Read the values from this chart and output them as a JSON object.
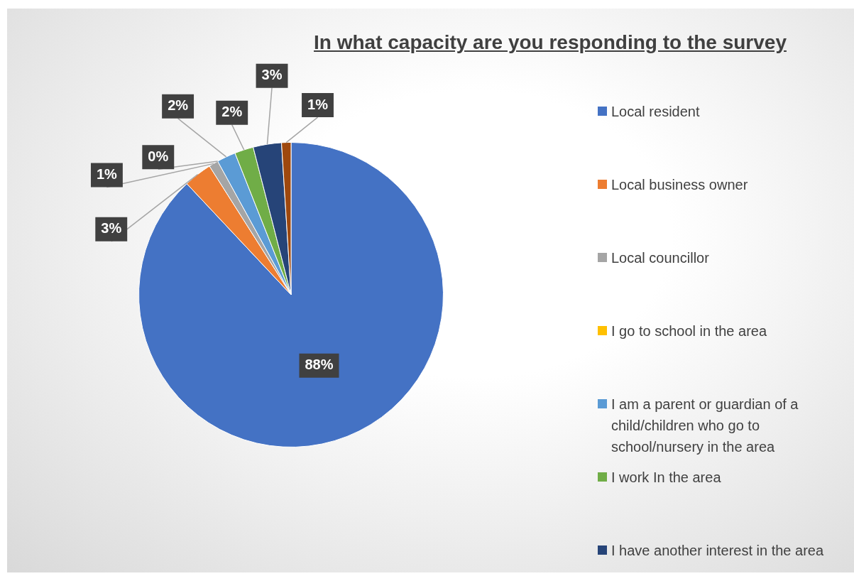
{
  "chart_data": {
    "type": "pie",
    "title": "In what capacity are you responding to the survey",
    "categories": [
      "Local resident",
      "Local business owner",
      "Local councillor",
      "I go to school in the area",
      "I am a parent or guardian of a child/children who go to school/nursery in the area",
      "I work In the area",
      "I have another interest in the area",
      null
    ],
    "values": [
      88,
      3,
      1,
      0,
      2,
      2,
      3,
      1
    ],
    "value_labels": [
      "88%",
      "3%",
      "1%",
      "0%",
      "2%",
      "2%",
      "3%",
      "1%"
    ],
    "colors": [
      "#4472c4",
      "#ed7d31",
      "#a5a5a5",
      "#ffc000",
      "#5b9bd5",
      "#70ad47",
      "#264478",
      "#9e480e"
    ],
    "legend": "right"
  }
}
